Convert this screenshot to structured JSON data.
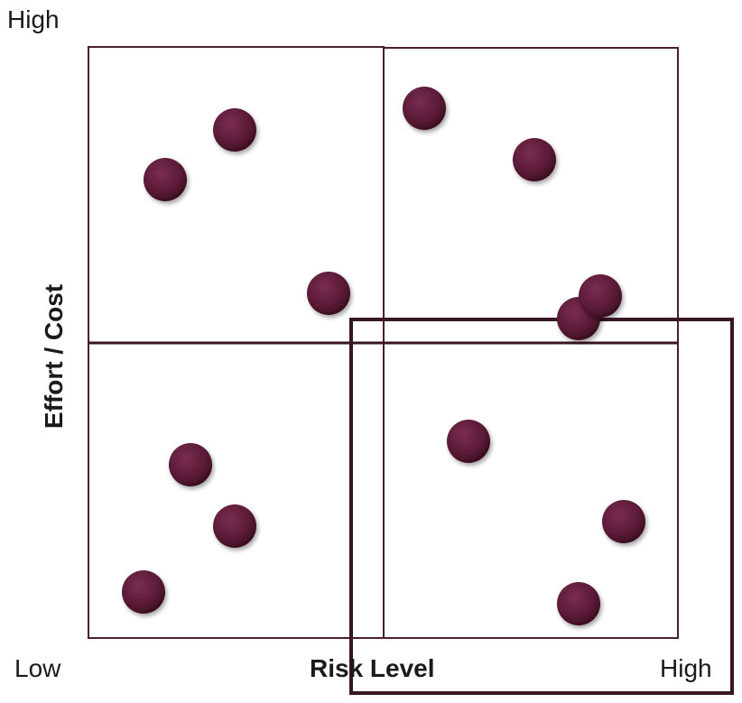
{
  "labels": {
    "y_high": "High",
    "y_axis": "Effort / Cost",
    "x_low": "Low",
    "x_axis": "Risk Level",
    "x_high": "High"
  },
  "colors": {
    "quadrant_border": "#4a1f33",
    "highlight_border": "#3a1526",
    "dot_fill": "#5a1a36",
    "dot_dark": "#3d0e22"
  },
  "quadrants": [
    {
      "id": "top-left",
      "items": 3
    },
    {
      "id": "top-right",
      "items": 4
    },
    {
      "id": "bottom-left",
      "items": 3
    },
    {
      "id": "bottom-right",
      "items": 3
    }
  ]
}
